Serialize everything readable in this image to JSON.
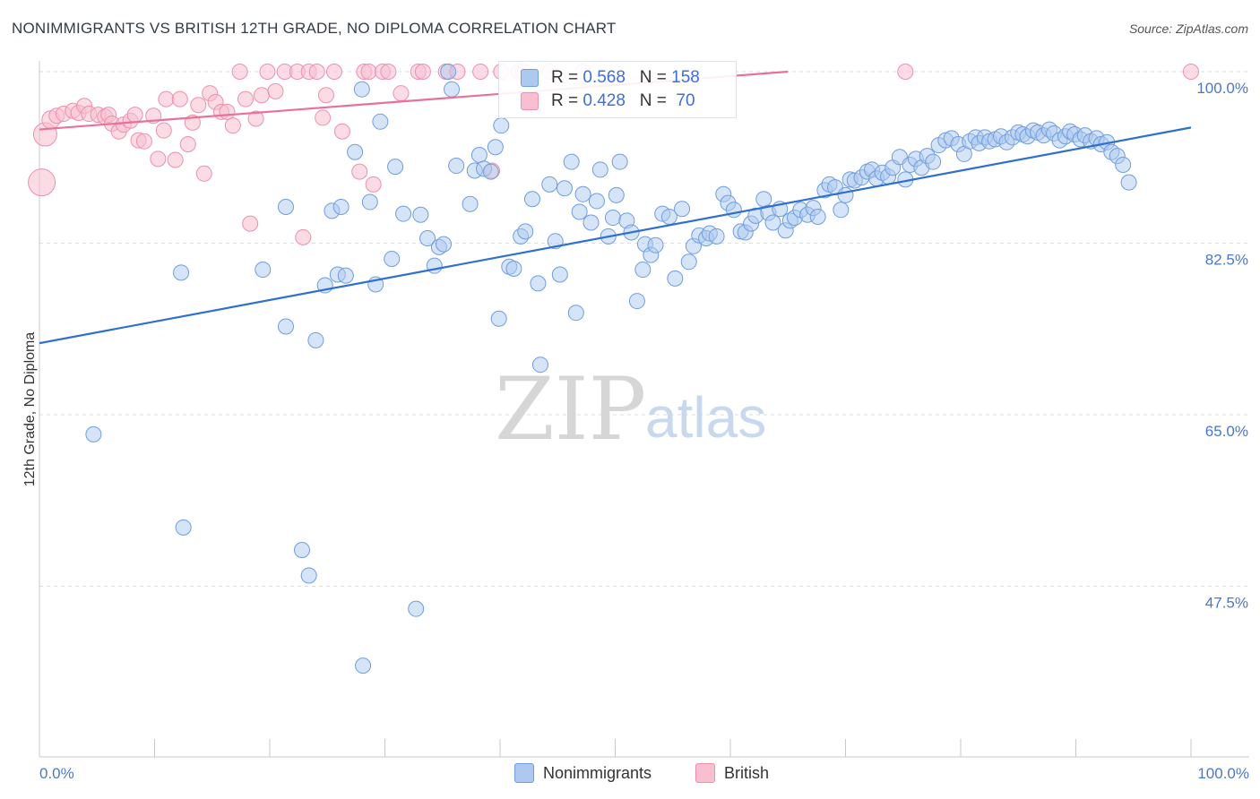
{
  "title": "NONIMMIGRANTS VS BRITISH 12TH GRADE, NO DIPLOMA CORRELATION CHART",
  "source": "Source: ZipAtlas.com",
  "watermark": {
    "zip": "ZIP",
    "atlas": "atlas"
  },
  "legend": {
    "rows": [
      {
        "r_label": "R = ",
        "r_value": "0.568",
        "n_label": "N = ",
        "n_value": "158"
      },
      {
        "r_label": "R = ",
        "r_value": "0.428",
        "n_label": "N = ",
        "n_value": " 70"
      }
    ]
  },
  "colors": {
    "blue_fill": "#aec9f0",
    "blue_stroke": "#6f9de0",
    "blue_line": "#2f6fd0",
    "pink_fill": "#f7bfd0",
    "pink_stroke": "#ee8fae",
    "pink_line": "#e8709a",
    "tick_text": "#4a78c8",
    "grid": "#dddddd"
  },
  "chart_data": {
    "type": "scatter",
    "title": "NONIMMIGRANTS VS BRITISH 12TH GRADE, NO DIPLOMA CORRELATION CHART",
    "xlabel": "",
    "ylabel": "12th Grade, No Diploma",
    "xlim": [
      0,
      100
    ],
    "ylim": [
      34,
      102
    ],
    "x_tick_labels": [
      "0.0%",
      "100.0%"
    ],
    "y_ticks": [
      47.5,
      65.0,
      82.5,
      100.0
    ],
    "y_tick_labels": [
      "47.5%",
      "65.0%",
      "82.5%",
      "100.0%"
    ],
    "grid": "horizontal dashed",
    "legend_position": "bottom",
    "series": [
      {
        "name": "Nonimmigrants",
        "color": "#aec9f0",
        "trend": {
          "x": [
            0,
            100
          ],
          "y": [
            72.3,
            94.3
          ]
        },
        "points": [
          [
            4.7,
            63.0
          ],
          [
            12.3,
            79.5
          ],
          [
            12.5,
            53.5
          ],
          [
            19.4,
            79.8
          ],
          [
            21.4,
            74.0
          ],
          [
            21.4,
            86.2
          ],
          [
            22.8,
            51.2
          ],
          [
            23.4,
            48.6
          ],
          [
            24.0,
            72.6
          ],
          [
            24.8,
            78.2
          ],
          [
            25.4,
            85.8
          ],
          [
            25.9,
            79.3
          ],
          [
            26.2,
            86.2
          ],
          [
            26.6,
            79.2
          ],
          [
            27.4,
            91.8
          ],
          [
            28.0,
            98.2
          ],
          [
            28.1,
            39.4
          ],
          [
            28.7,
            86.7
          ],
          [
            29.2,
            78.3
          ],
          [
            29.6,
            94.9
          ],
          [
            30.6,
            80.9
          ],
          [
            30.9,
            90.3
          ],
          [
            31.6,
            85.5
          ],
          [
            32.7,
            45.2
          ],
          [
            33.1,
            85.4
          ],
          [
            33.7,
            83.0
          ],
          [
            34.3,
            80.2
          ],
          [
            34.7,
            82.1
          ],
          [
            35.1,
            82.4
          ],
          [
            35.5,
            100.0
          ],
          [
            35.8,
            98.2
          ],
          [
            36.2,
            90.4
          ],
          [
            37.4,
            86.5
          ],
          [
            37.8,
            89.9
          ],
          [
            38.2,
            91.5
          ],
          [
            38.6,
            90.1
          ],
          [
            39.2,
            89.8
          ],
          [
            39.6,
            92.3
          ],
          [
            39.9,
            74.8
          ],
          [
            40.1,
            94.5
          ],
          [
            40.8,
            80.1
          ],
          [
            41.2,
            79.9
          ],
          [
            41.8,
            83.2
          ],
          [
            42.2,
            83.7
          ],
          [
            42.8,
            87.0
          ],
          [
            43.3,
            78.4
          ],
          [
            43.5,
            70.1
          ],
          [
            44.3,
            88.5
          ],
          [
            44.8,
            82.7
          ],
          [
            45.2,
            79.3
          ],
          [
            45.6,
            88.1
          ],
          [
            46.2,
            90.8
          ],
          [
            46.6,
            75.4
          ],
          [
            46.9,
            85.7
          ],
          [
            47.2,
            87.5
          ],
          [
            47.9,
            84.6
          ],
          [
            48.4,
            86.8
          ],
          [
            48.7,
            90.0
          ],
          [
            49.4,
            83.2
          ],
          [
            49.8,
            85.1
          ],
          [
            50.1,
            87.4
          ],
          [
            50.4,
            90.8
          ],
          [
            51.0,
            84.8
          ],
          [
            51.4,
            83.6
          ],
          [
            51.9,
            76.6
          ],
          [
            52.4,
            79.8
          ],
          [
            52.6,
            82.4
          ],
          [
            53.1,
            81.3
          ],
          [
            53.5,
            82.3
          ],
          [
            54.1,
            85.5
          ],
          [
            54.7,
            85.2
          ],
          [
            55.2,
            78.9
          ],
          [
            55.8,
            86.0
          ],
          [
            56.4,
            80.6
          ],
          [
            56.8,
            82.2
          ],
          [
            57.3,
            83.3
          ],
          [
            57.9,
            83.0
          ],
          [
            58.2,
            83.5
          ],
          [
            58.8,
            83.2
          ],
          [
            59.4,
            87.5
          ],
          [
            59.8,
            86.6
          ],
          [
            60.3,
            85.9
          ],
          [
            60.9,
            83.7
          ],
          [
            61.3,
            83.6
          ],
          [
            61.8,
            84.5
          ],
          [
            62.2,
            85.3
          ],
          [
            62.9,
            87.0
          ],
          [
            63.3,
            85.6
          ],
          [
            63.7,
            84.6
          ],
          [
            64.3,
            86.0
          ],
          [
            64.8,
            83.8
          ],
          [
            65.2,
            84.8
          ],
          [
            65.6,
            85.1
          ],
          [
            66.1,
            85.9
          ],
          [
            66.7,
            85.4
          ],
          [
            67.2,
            86.1
          ],
          [
            67.6,
            85.2
          ],
          [
            68.2,
            87.9
          ],
          [
            68.6,
            88.5
          ],
          [
            69.1,
            88.2
          ],
          [
            69.6,
            85.9
          ],
          [
            70.0,
            87.4
          ],
          [
            70.4,
            89.0
          ],
          [
            70.8,
            88.9
          ],
          [
            71.4,
            89.2
          ],
          [
            71.9,
            89.8
          ],
          [
            72.3,
            90.0
          ],
          [
            72.7,
            89.1
          ],
          [
            73.2,
            89.7
          ],
          [
            73.7,
            89.3
          ],
          [
            74.1,
            90.2
          ],
          [
            74.7,
            91.3
          ],
          [
            75.2,
            89.0
          ],
          [
            75.6,
            90.5
          ],
          [
            76.1,
            91.1
          ],
          [
            76.6,
            90.2
          ],
          [
            77.1,
            91.4
          ],
          [
            77.6,
            90.8
          ],
          [
            78.1,
            92.5
          ],
          [
            78.7,
            93.0
          ],
          [
            79.2,
            93.2
          ],
          [
            79.8,
            92.6
          ],
          [
            80.3,
            91.6
          ],
          [
            80.8,
            92.9
          ],
          [
            81.3,
            93.3
          ],
          [
            81.6,
            92.7
          ],
          [
            82.1,
            93.3
          ],
          [
            82.5,
            92.9
          ],
          [
            83.0,
            93.1
          ],
          [
            83.5,
            93.4
          ],
          [
            84.0,
            92.8
          ],
          [
            84.5,
            93.3
          ],
          [
            85.0,
            93.8
          ],
          [
            85.4,
            93.6
          ],
          [
            85.8,
            93.4
          ],
          [
            86.3,
            94.0
          ],
          [
            86.7,
            93.8
          ],
          [
            87.2,
            93.5
          ],
          [
            87.7,
            94.1
          ],
          [
            88.1,
            93.7
          ],
          [
            88.6,
            93.0
          ],
          [
            89.1,
            93.4
          ],
          [
            89.5,
            93.9
          ],
          [
            89.9,
            93.6
          ],
          [
            90.4,
            93.1
          ],
          [
            90.8,
            93.5
          ],
          [
            91.3,
            92.9
          ],
          [
            91.8,
            93.2
          ],
          [
            92.2,
            92.6
          ],
          [
            92.7,
            92.8
          ],
          [
            93.1,
            91.8
          ],
          [
            93.6,
            91.4
          ],
          [
            94.1,
            90.5
          ],
          [
            94.6,
            88.7
          ]
        ]
      },
      {
        "name": "British",
        "color": "#f7bfd0",
        "trend": {
          "x": [
            0,
            65
          ],
          "y": [
            94.1,
            100.0
          ]
        },
        "points": [
          [
            0.2,
            88.7
          ],
          [
            0.5,
            93.6
          ],
          [
            1.0,
            95.1
          ],
          [
            1.5,
            95.5
          ],
          [
            2.1,
            95.7
          ],
          [
            2.9,
            96.0
          ],
          [
            3.4,
            95.8
          ],
          [
            3.9,
            96.5
          ],
          [
            4.3,
            95.7
          ],
          [
            5.1,
            95.6
          ],
          [
            5.7,
            95.4
          ],
          [
            6.0,
            95.6
          ],
          [
            6.3,
            94.7
          ],
          [
            6.9,
            93.9
          ],
          [
            7.3,
            94.6
          ],
          [
            7.9,
            95.0
          ],
          [
            8.3,
            95.6
          ],
          [
            8.6,
            93.0
          ],
          [
            9.1,
            92.9
          ],
          [
            9.9,
            95.5
          ],
          [
            10.3,
            91.1
          ],
          [
            10.8,
            94.0
          ],
          [
            11.0,
            97.2
          ],
          [
            11.8,
            91.0
          ],
          [
            12.2,
            97.2
          ],
          [
            12.9,
            92.6
          ],
          [
            13.3,
            94.8
          ],
          [
            13.8,
            96.6
          ],
          [
            14.3,
            89.6
          ],
          [
            14.8,
            97.8
          ],
          [
            15.3,
            96.9
          ],
          [
            15.8,
            95.9
          ],
          [
            16.3,
            95.9
          ],
          [
            16.8,
            94.5
          ],
          [
            17.4,
            100.0
          ],
          [
            17.9,
            97.2
          ],
          [
            18.3,
            84.5
          ],
          [
            18.8,
            95.2
          ],
          [
            19.3,
            97.6
          ],
          [
            19.8,
            100.0
          ],
          [
            20.5,
            98.0
          ],
          [
            21.3,
            100.0
          ],
          [
            22.4,
            100.0
          ],
          [
            22.9,
            83.1
          ],
          [
            23.4,
            100.0
          ],
          [
            24.1,
            100.0
          ],
          [
            24.6,
            95.3
          ],
          [
            24.9,
            97.6
          ],
          [
            25.6,
            100.0
          ],
          [
            26.3,
            93.9
          ],
          [
            27.8,
            89.8
          ],
          [
            28.2,
            100.0
          ],
          [
            28.6,
            100.0
          ],
          [
            29.0,
            88.5
          ],
          [
            29.8,
            100.0
          ],
          [
            30.3,
            100.0
          ],
          [
            31.4,
            97.8
          ],
          [
            32.9,
            100.0
          ],
          [
            33.3,
            100.0
          ],
          [
            35.3,
            100.0
          ],
          [
            36.3,
            100.0
          ],
          [
            38.3,
            100.0
          ],
          [
            39.3,
            89.9
          ],
          [
            40.1,
            100.0
          ],
          [
            41.6,
            100.0
          ],
          [
            42.0,
            100.0
          ],
          [
            44.3,
            100.0
          ],
          [
            47.2,
            100.0
          ],
          [
            75.2,
            100.0
          ],
          [
            100.0,
            100.0
          ]
        ]
      }
    ]
  },
  "bottom_legend": [
    {
      "label": "Nonimmigrants"
    },
    {
      "label": "British"
    }
  ]
}
